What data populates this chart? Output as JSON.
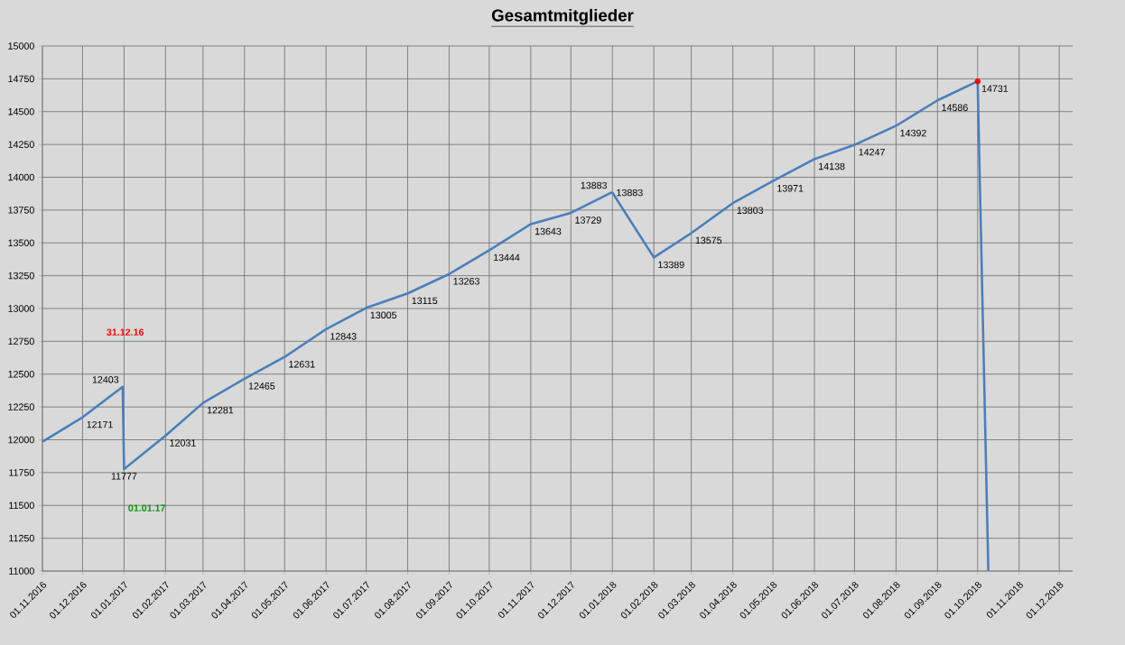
{
  "chart_data": {
    "type": "line",
    "title": "Gesamtmitglieder",
    "xlim": [
      "2016-11-01",
      "2018-12-11"
    ],
    "ylim": [
      11000,
      15000
    ],
    "xticks": [
      {
        "value": "2016-11-01",
        "label": "01.11.2016"
      },
      {
        "value": "2016-12-01",
        "label": "01.12.2016"
      },
      {
        "value": "2017-01-01",
        "label": "01.01.2017"
      },
      {
        "value": "2017-02-01",
        "label": "01.02.2017"
      },
      {
        "value": "2017-03-01",
        "label": "01.03.2017"
      },
      {
        "value": "2017-04-01",
        "label": "01.04.2017"
      },
      {
        "value": "2017-05-01",
        "label": "01.05.2017"
      },
      {
        "value": "2017-06-01",
        "label": "01.06.2017"
      },
      {
        "value": "2017-07-01",
        "label": "01.07.2017"
      },
      {
        "value": "2017-08-01",
        "label": "01.08.2017"
      },
      {
        "value": "2017-09-01",
        "label": "01.09.2017"
      },
      {
        "value": "2017-10-01",
        "label": "01.10.2017"
      },
      {
        "value": "2017-11-01",
        "label": "01.11.2017"
      },
      {
        "value": "2017-12-01",
        "label": "01.12.2017"
      },
      {
        "value": "2018-01-01",
        "label": "01.01.2018"
      },
      {
        "value": "2018-02-01",
        "label": "01.02.2018"
      },
      {
        "value": "2018-03-01",
        "label": "01.03.2018"
      },
      {
        "value": "2018-04-01",
        "label": "01.04.2018"
      },
      {
        "value": "2018-05-01",
        "label": "01.05.2018"
      },
      {
        "value": "2018-06-01",
        "label": "01.06.2018"
      },
      {
        "value": "2018-07-01",
        "label": "01.07.2018"
      },
      {
        "value": "2018-08-01",
        "label": "01.08.2018"
      },
      {
        "value": "2018-09-01",
        "label": "01.09.2018"
      },
      {
        "value": "2018-10-01",
        "label": "01.10.2018"
      },
      {
        "value": "2018-11-01",
        "label": "01.11.2018"
      },
      {
        "value": "2018-12-01",
        "label": "01.12.2018"
      }
    ],
    "yticks": [
      11000,
      11250,
      11500,
      11750,
      12000,
      12250,
      12500,
      12750,
      13000,
      13250,
      13500,
      13750,
      14000,
      14250,
      14500,
      14750,
      15000
    ],
    "grid": true,
    "series": [
      {
        "color": "#4a7ebb",
        "x": [
          "2016-11-01",
          "2016-12-01",
          "2016-12-31",
          "2017-01-01",
          "2017-02-01",
          "2017-03-01",
          "2017-04-01",
          "2017-05-01",
          "2017-06-01",
          "2017-07-01",
          "2017-08-01",
          "2017-09-01",
          "2017-10-01",
          "2017-11-01",
          "2017-12-01",
          "2017-12-31",
          "2018-01-01",
          "2018-02-01",
          "2018-03-01",
          "2018-04-01",
          "2018-05-01",
          "2018-06-01",
          "2018-07-01",
          "2018-08-01",
          "2018-09-01",
          "2018-10-01",
          "2018-10-09"
        ],
        "values": [
          11985,
          12171,
          12403,
          11777,
          12031,
          12281,
          12465,
          12631,
          12843,
          13005,
          13115,
          13263,
          13444,
          13643,
          13729,
          13883,
          13883,
          13389,
          13575,
          13803,
          13971,
          14138,
          14247,
          14392,
          14586,
          14731,
          11000
        ],
        "value_labels": [
          null,
          "12171",
          "12403",
          "11777",
          "12031",
          "12281",
          "12465",
          "12631",
          "12843",
          "13005",
          "13115",
          "13263",
          "13444",
          "13643",
          "13729",
          "13883",
          "13883",
          "13389",
          "13575",
          "13803",
          "13971",
          "14138",
          "14247",
          "14392",
          "14586",
          "14731",
          null
        ]
      },
      {
        "type": "scatter",
        "color": "#ff0000",
        "marker": "circle",
        "x": [
          "2018-10-01"
        ],
        "values": [
          14731
        ]
      }
    ],
    "annotations": [
      "31.12.16",
      "01.01.17"
    ]
  }
}
